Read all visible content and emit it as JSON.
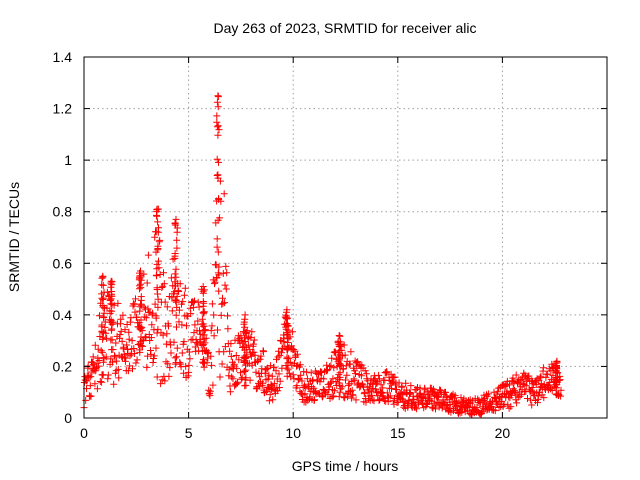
{
  "chart_data": {
    "type": "scatter",
    "title": "Day 263 of 2023, SRMTID for receiver alic",
    "xlabel": "GPS time / hours",
    "ylabel": "SRMTID / TECUs",
    "xlim": [
      0,
      25
    ],
    "ylim": [
      0,
      1.4
    ],
    "xticks": [
      "0",
      "5",
      "10",
      "15",
      "20"
    ],
    "yticks": [
      "0",
      "0.2",
      "0.4",
      "0.6",
      "0.8",
      "1",
      "1.2",
      "1.4"
    ],
    "grid": true,
    "marker": "plus",
    "color": "#ff0000",
    "series_summary": [
      {
        "hour": 0.0,
        "base": 0.12,
        "spread": 0.08
      },
      {
        "hour": 0.5,
        "base": 0.18,
        "spread": 0.08
      },
      {
        "hour": 0.9,
        "base": 0.32,
        "spread": 0.2
      },
      {
        "hour": 1.5,
        "base": 0.3,
        "spread": 0.18
      },
      {
        "hour": 2.0,
        "base": 0.27,
        "spread": 0.1
      },
      {
        "hour": 2.8,
        "base": 0.38,
        "spread": 0.17
      },
      {
        "hour": 3.5,
        "base": 0.45,
        "spread": 0.35
      },
      {
        "hour": 4.0,
        "base": 0.3,
        "spread": 0.15
      },
      {
        "hour": 4.4,
        "base": 0.48,
        "spread": 0.28
      },
      {
        "hour": 5.0,
        "base": 0.28,
        "spread": 0.15
      },
      {
        "hour": 5.6,
        "base": 0.4,
        "spread": 0.12
      },
      {
        "hour": 6.0,
        "base": 0.15,
        "spread": 0.07
      },
      {
        "hour": 6.5,
        "base": 0.7,
        "spread": 0.55
      },
      {
        "hour": 7.0,
        "base": 0.2,
        "spread": 0.1
      },
      {
        "hour": 8.0,
        "base": 0.25,
        "spread": 0.12
      },
      {
        "hour": 9.0,
        "base": 0.12,
        "spread": 0.07
      },
      {
        "hour": 9.7,
        "base": 0.3,
        "spread": 0.12
      },
      {
        "hour": 10.5,
        "base": 0.12,
        "spread": 0.06
      },
      {
        "hour": 11.5,
        "base": 0.13,
        "spread": 0.06
      },
      {
        "hour": 12.3,
        "base": 0.2,
        "spread": 0.12
      },
      {
        "hour": 13.5,
        "base": 0.12,
        "spread": 0.06
      },
      {
        "hour": 14.5,
        "base": 0.12,
        "spread": 0.06
      },
      {
        "hour": 15.5,
        "base": 0.08,
        "spread": 0.05
      },
      {
        "hour": 16.5,
        "base": 0.08,
        "spread": 0.04
      },
      {
        "hour": 17.5,
        "base": 0.06,
        "spread": 0.04
      },
      {
        "hour": 18.5,
        "base": 0.04,
        "spread": 0.03
      },
      {
        "hour": 19.5,
        "base": 0.06,
        "spread": 0.04
      },
      {
        "hour": 20.5,
        "base": 0.1,
        "spread": 0.06
      },
      {
        "hour": 21.0,
        "base": 0.14,
        "spread": 0.05
      },
      {
        "hour": 21.5,
        "base": 0.09,
        "spread": 0.05
      },
      {
        "hour": 22.0,
        "base": 0.14,
        "spread": 0.06
      },
      {
        "hour": 22.5,
        "base": 0.17,
        "spread": 0.06
      },
      {
        "hour": 22.8,
        "base": 0.12,
        "spread": 0.05
      }
    ],
    "peaks": [
      {
        "hour": 0.9,
        "value": 0.55
      },
      {
        "hour": 1.3,
        "value": 0.53
      },
      {
        "hour": 2.7,
        "value": 0.57
      },
      {
        "hour": 3.5,
        "value": 0.81
      },
      {
        "hour": 4.4,
        "value": 0.77
      },
      {
        "hour": 5.7,
        "value": 0.51
      },
      {
        "hour": 6.4,
        "value": 1.25
      },
      {
        "hour": 7.7,
        "value": 0.4
      },
      {
        "hour": 9.7,
        "value": 0.42
      },
      {
        "hour": 12.2,
        "value": 0.32
      },
      {
        "hour": 22.6,
        "value": 0.22
      }
    ]
  }
}
